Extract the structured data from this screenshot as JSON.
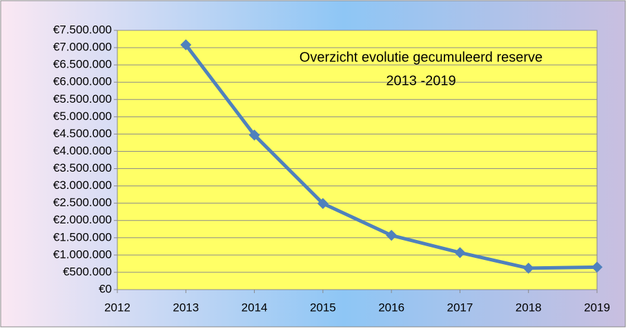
{
  "chart_data": {
    "type": "line",
    "title": "Overzicht evolutie gecumuleerd reserve",
    "subtitle": "2013 -2019",
    "x": [
      2013,
      2014,
      2015,
      2016,
      2017,
      2018,
      2019
    ],
    "series": [
      {
        "name": "Gecumuleerd reserve",
        "color": "#4f81bd",
        "values": [
          7080000,
          4470000,
          2490000,
          1570000,
          1070000,
          620000,
          650000
        ]
      }
    ],
    "xlim": [
      2012,
      2019
    ],
    "xticks": [
      2012,
      2013,
      2014,
      2015,
      2016,
      2017,
      2018,
      2019
    ],
    "ylim": [
      0,
      7500000
    ],
    "yticks": [
      {
        "value": 0,
        "label": "€0"
      },
      {
        "value": 500000,
        "label": "€500.000"
      },
      {
        "value": 1000000,
        "label": "€1.000.000"
      },
      {
        "value": 1500000,
        "label": "€1.500.000"
      },
      {
        "value": 2000000,
        "label": "€2.000.000"
      },
      {
        "value": 2500000,
        "label": "€2.500.000"
      },
      {
        "value": 3000000,
        "label": "€3.000.000"
      },
      {
        "value": 3500000,
        "label": "€3.500.000"
      },
      {
        "value": 4000000,
        "label": "€4.000.000"
      },
      {
        "value": 4500000,
        "label": "€4.500.000"
      },
      {
        "value": 5000000,
        "label": "€5.000.000"
      },
      {
        "value": 5500000,
        "label": "€5.500.000"
      },
      {
        "value": 6000000,
        "label": "€6.000.000"
      },
      {
        "value": 6500000,
        "label": "€6.500.000"
      },
      {
        "value": 7000000,
        "label": "€7.000.000"
      },
      {
        "value": 7500000,
        "label": "€7.500.000"
      }
    ],
    "grid": true,
    "plot_background": "#ffff66"
  }
}
